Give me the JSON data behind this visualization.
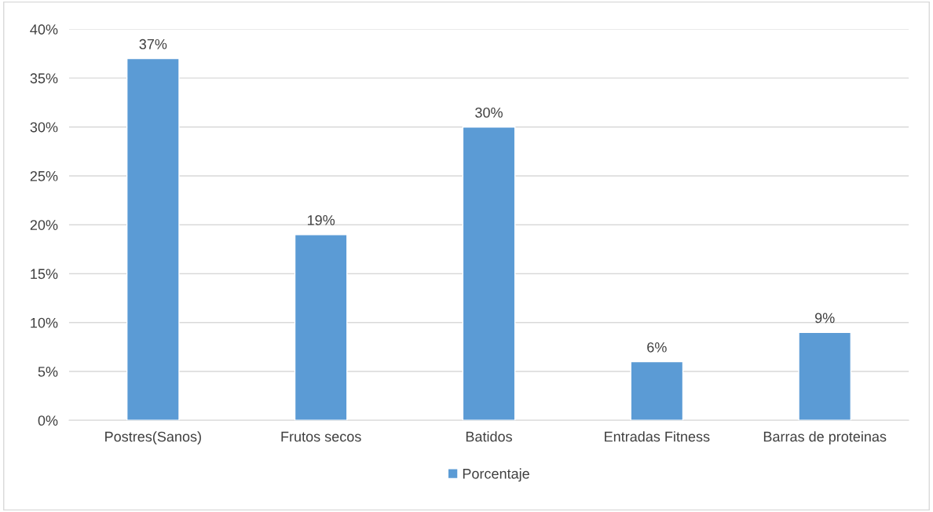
{
  "chart_data": {
    "type": "bar",
    "categories": [
      "Postres(Sanos)",
      "Frutos secos",
      "Batidos",
      "Entradas Fitness",
      "Barras de proteinas"
    ],
    "series": [
      {
        "name": "Porcentaje",
        "color": "#5b9bd5",
        "values": [
          37,
          19,
          30,
          6,
          9
        ],
        "value_labels": [
          "37%",
          "19%",
          "30%",
          "6%",
          "9%"
        ]
      }
    ],
    "ylim": [
      0,
      40
    ],
    "yticks": [
      {
        "value": 0,
        "label": "0%"
      },
      {
        "value": 5,
        "label": "5%"
      },
      {
        "value": 10,
        "label": "10%"
      },
      {
        "value": 15,
        "label": "15%"
      },
      {
        "value": 20,
        "label": "20%"
      },
      {
        "value": 25,
        "label": "25%"
      },
      {
        "value": 30,
        "label": "30%"
      },
      {
        "value": 35,
        "label": "35%"
      },
      {
        "value": 40,
        "label": "40%"
      }
    ],
    "grid": "y",
    "legend": "bottom"
  }
}
